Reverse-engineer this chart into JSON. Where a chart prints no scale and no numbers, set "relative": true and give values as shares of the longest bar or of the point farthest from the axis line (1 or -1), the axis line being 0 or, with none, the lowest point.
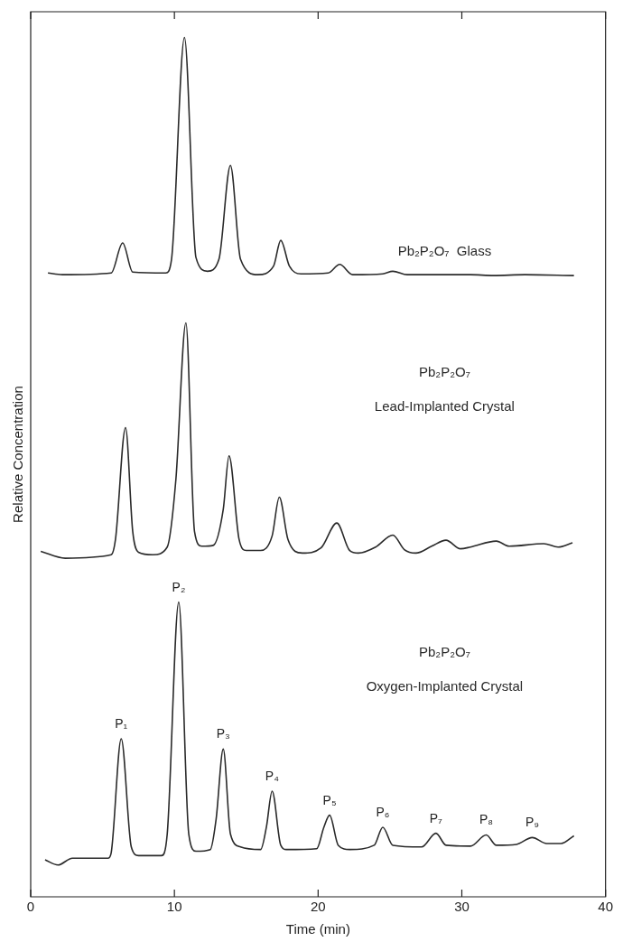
{
  "chart_data": {
    "type": "line",
    "relative": true,
    "xlabel": "Time (min)",
    "ylabel": "Relative Concentration",
    "xlim": [
      0,
      40
    ],
    "xticks": [
      0,
      10,
      20,
      30,
      40
    ],
    "grid": false,
    "legend": false,
    "marker": "none",
    "line_style": "solid",
    "series": [
      {
        "name": "Pb₂P₂O₇  Glass",
        "color": "#2a2a2a",
        "x": [
          1.2,
          2.2,
          5.6,
          6.4,
          7.1,
          9.4,
          9.8,
          10.7,
          11.5,
          12.3,
          13.1,
          13.9,
          14.6,
          15.8,
          16.9,
          17.4,
          18.0,
          18.8,
          20.7,
          21.5,
          22.4,
          24.5,
          25.2,
          26.2,
          30.6,
          32.2,
          34.4,
          37.8
        ],
        "values": [
          0.726,
          0.724,
          0.726,
          0.761,
          0.727,
          0.726,
          0.742,
          1.0,
          0.744,
          0.728,
          0.742,
          0.851,
          0.742,
          0.724,
          0.734,
          0.764,
          0.734,
          0.725,
          0.726,
          0.736,
          0.724,
          0.725,
          0.728,
          0.724,
          0.724,
          0.723,
          0.724,
          0.723
        ]
      },
      {
        "name": "Pb₂P₂O₇\nLead-Implanted Crystal",
        "color": "#2a2a2a",
        "x": [
          0.7,
          2.4,
          5.6,
          5.9,
          6.6,
          7.1,
          7.5,
          8.5,
          9.5,
          10.1,
          10.8,
          11.4,
          11.9,
          12.7,
          13.4,
          13.8,
          14.5,
          15.0,
          16.0,
          16.8,
          17.3,
          17.9,
          18.9,
          20.2,
          21.3,
          22.2,
          22.8,
          24.0,
          25.2,
          26.0,
          26.8,
          27.9,
          28.9,
          29.9,
          30.6,
          32.4,
          33.3,
          35.7,
          36.7,
          37.7
        ],
        "values": [
          0.402,
          0.394,
          0.398,
          0.416,
          0.546,
          0.425,
          0.401,
          0.398,
          0.407,
          0.485,
          0.668,
          0.425,
          0.408,
          0.409,
          0.451,
          0.513,
          0.416,
          0.403,
          0.403,
          0.42,
          0.465,
          0.416,
          0.4,
          0.406,
          0.435,
          0.403,
          0.4,
          0.407,
          0.421,
          0.404,
          0.4,
          0.408,
          0.415,
          0.405,
          0.407,
          0.414,
          0.408,
          0.411,
          0.407,
          0.412
        ]
      },
      {
        "name": "Pb₂P₂O₇\nOxygen-Implanted Crystal",
        "color": "#2a2a2a",
        "x": [
          1.0,
          1.9,
          2.9,
          5.4,
          5.6,
          6.3,
          7.0,
          7.5,
          9.1,
          9.5,
          10.3,
          11.0,
          11.5,
          12.5,
          12.9,
          13.4,
          13.9,
          14.6,
          16.0,
          16.4,
          16.8,
          17.4,
          17.8,
          19.9,
          20.4,
          20.8,
          21.4,
          22.2,
          23.9,
          24.5,
          25.2,
          27.2,
          28.2,
          28.9,
          30.6,
          31.7,
          32.4,
          33.8,
          34.9,
          35.9,
          36.9,
          37.8
        ],
        "values": [
          0.043,
          0.037,
          0.045,
          0.045,
          0.051,
          0.184,
          0.058,
          0.048,
          0.048,
          0.073,
          0.343,
          0.073,
          0.053,
          0.055,
          0.09,
          0.172,
          0.073,
          0.058,
          0.055,
          0.081,
          0.123,
          0.06,
          0.055,
          0.056,
          0.081,
          0.095,
          0.06,
          0.055,
          0.06,
          0.081,
          0.06,
          0.058,
          0.074,
          0.06,
          0.059,
          0.072,
          0.06,
          0.061,
          0.069,
          0.062,
          0.062,
          0.071
        ]
      }
    ],
    "annotations": [
      {
        "text": "P₁",
        "x": 6.3,
        "y": 0.184
      },
      {
        "text": "P₂",
        "x": 10.3,
        "y": 0.343
      },
      {
        "text": "P₃",
        "x": 13.4,
        "y": 0.172
      },
      {
        "text": "P₄",
        "x": 16.8,
        "y": 0.123
      },
      {
        "text": "P₅",
        "x": 20.8,
        "y": 0.095
      },
      {
        "text": "P₆",
        "x": 24.5,
        "y": 0.081
      },
      {
        "text": "P₇",
        "x": 28.2,
        "y": 0.074
      },
      {
        "text": "P₈",
        "x": 31.7,
        "y": 0.072
      },
      {
        "text": "P₉",
        "x": 34.9,
        "y": 0.069
      }
    ]
  }
}
